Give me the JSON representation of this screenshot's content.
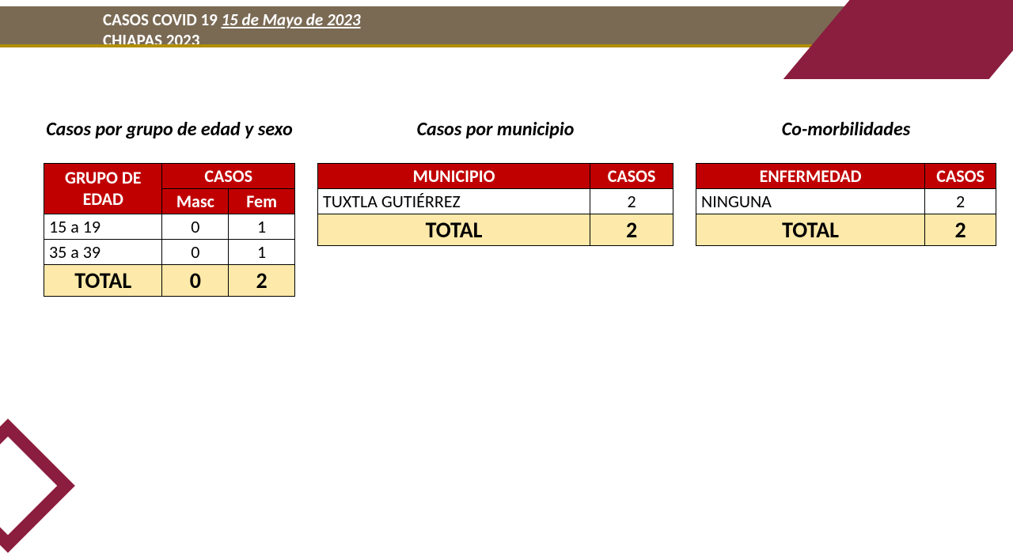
{
  "header": {
    "line1_prefix": "CASOS COVID 19 ",
    "date": "15 de Mayo de 2023",
    "line2": "CHIAPAS 2023"
  },
  "colors": {
    "header_band": "#7a6a54",
    "gold_line": "#b18f00",
    "accent": "#8b1e3f",
    "table_header": "#c00000",
    "total_row": "#fde9a9"
  },
  "age_sex": {
    "title": "Casos por grupo de edad y sexo",
    "h_group": "GRUPO DE EDAD",
    "h_cases": "CASOS",
    "h_masc": "Masc",
    "h_fem": "Fem",
    "rows": [
      {
        "group": "15 a 19",
        "masc": "0",
        "fem": "1"
      },
      {
        "group": "35 a 39",
        "masc": "0",
        "fem": "1"
      }
    ],
    "total_label": "TOTAL",
    "total_masc": "0",
    "total_fem": "2"
  },
  "municipio": {
    "title": "Casos por municipio",
    "h_muni": "MUNICIPIO",
    "h_cases": "CASOS",
    "rows": [
      {
        "name": "TUXTLA GUTIÉRREZ",
        "cases": "2"
      }
    ],
    "total_label": "TOTAL",
    "total": "2"
  },
  "comorbid": {
    "title": "Co-morbilidades",
    "h_disease": "ENFERMEDAD",
    "h_cases": "CASOS",
    "rows": [
      {
        "name": "NINGUNA",
        "cases": "2"
      }
    ],
    "total_label": "TOTAL",
    "total": "2"
  }
}
